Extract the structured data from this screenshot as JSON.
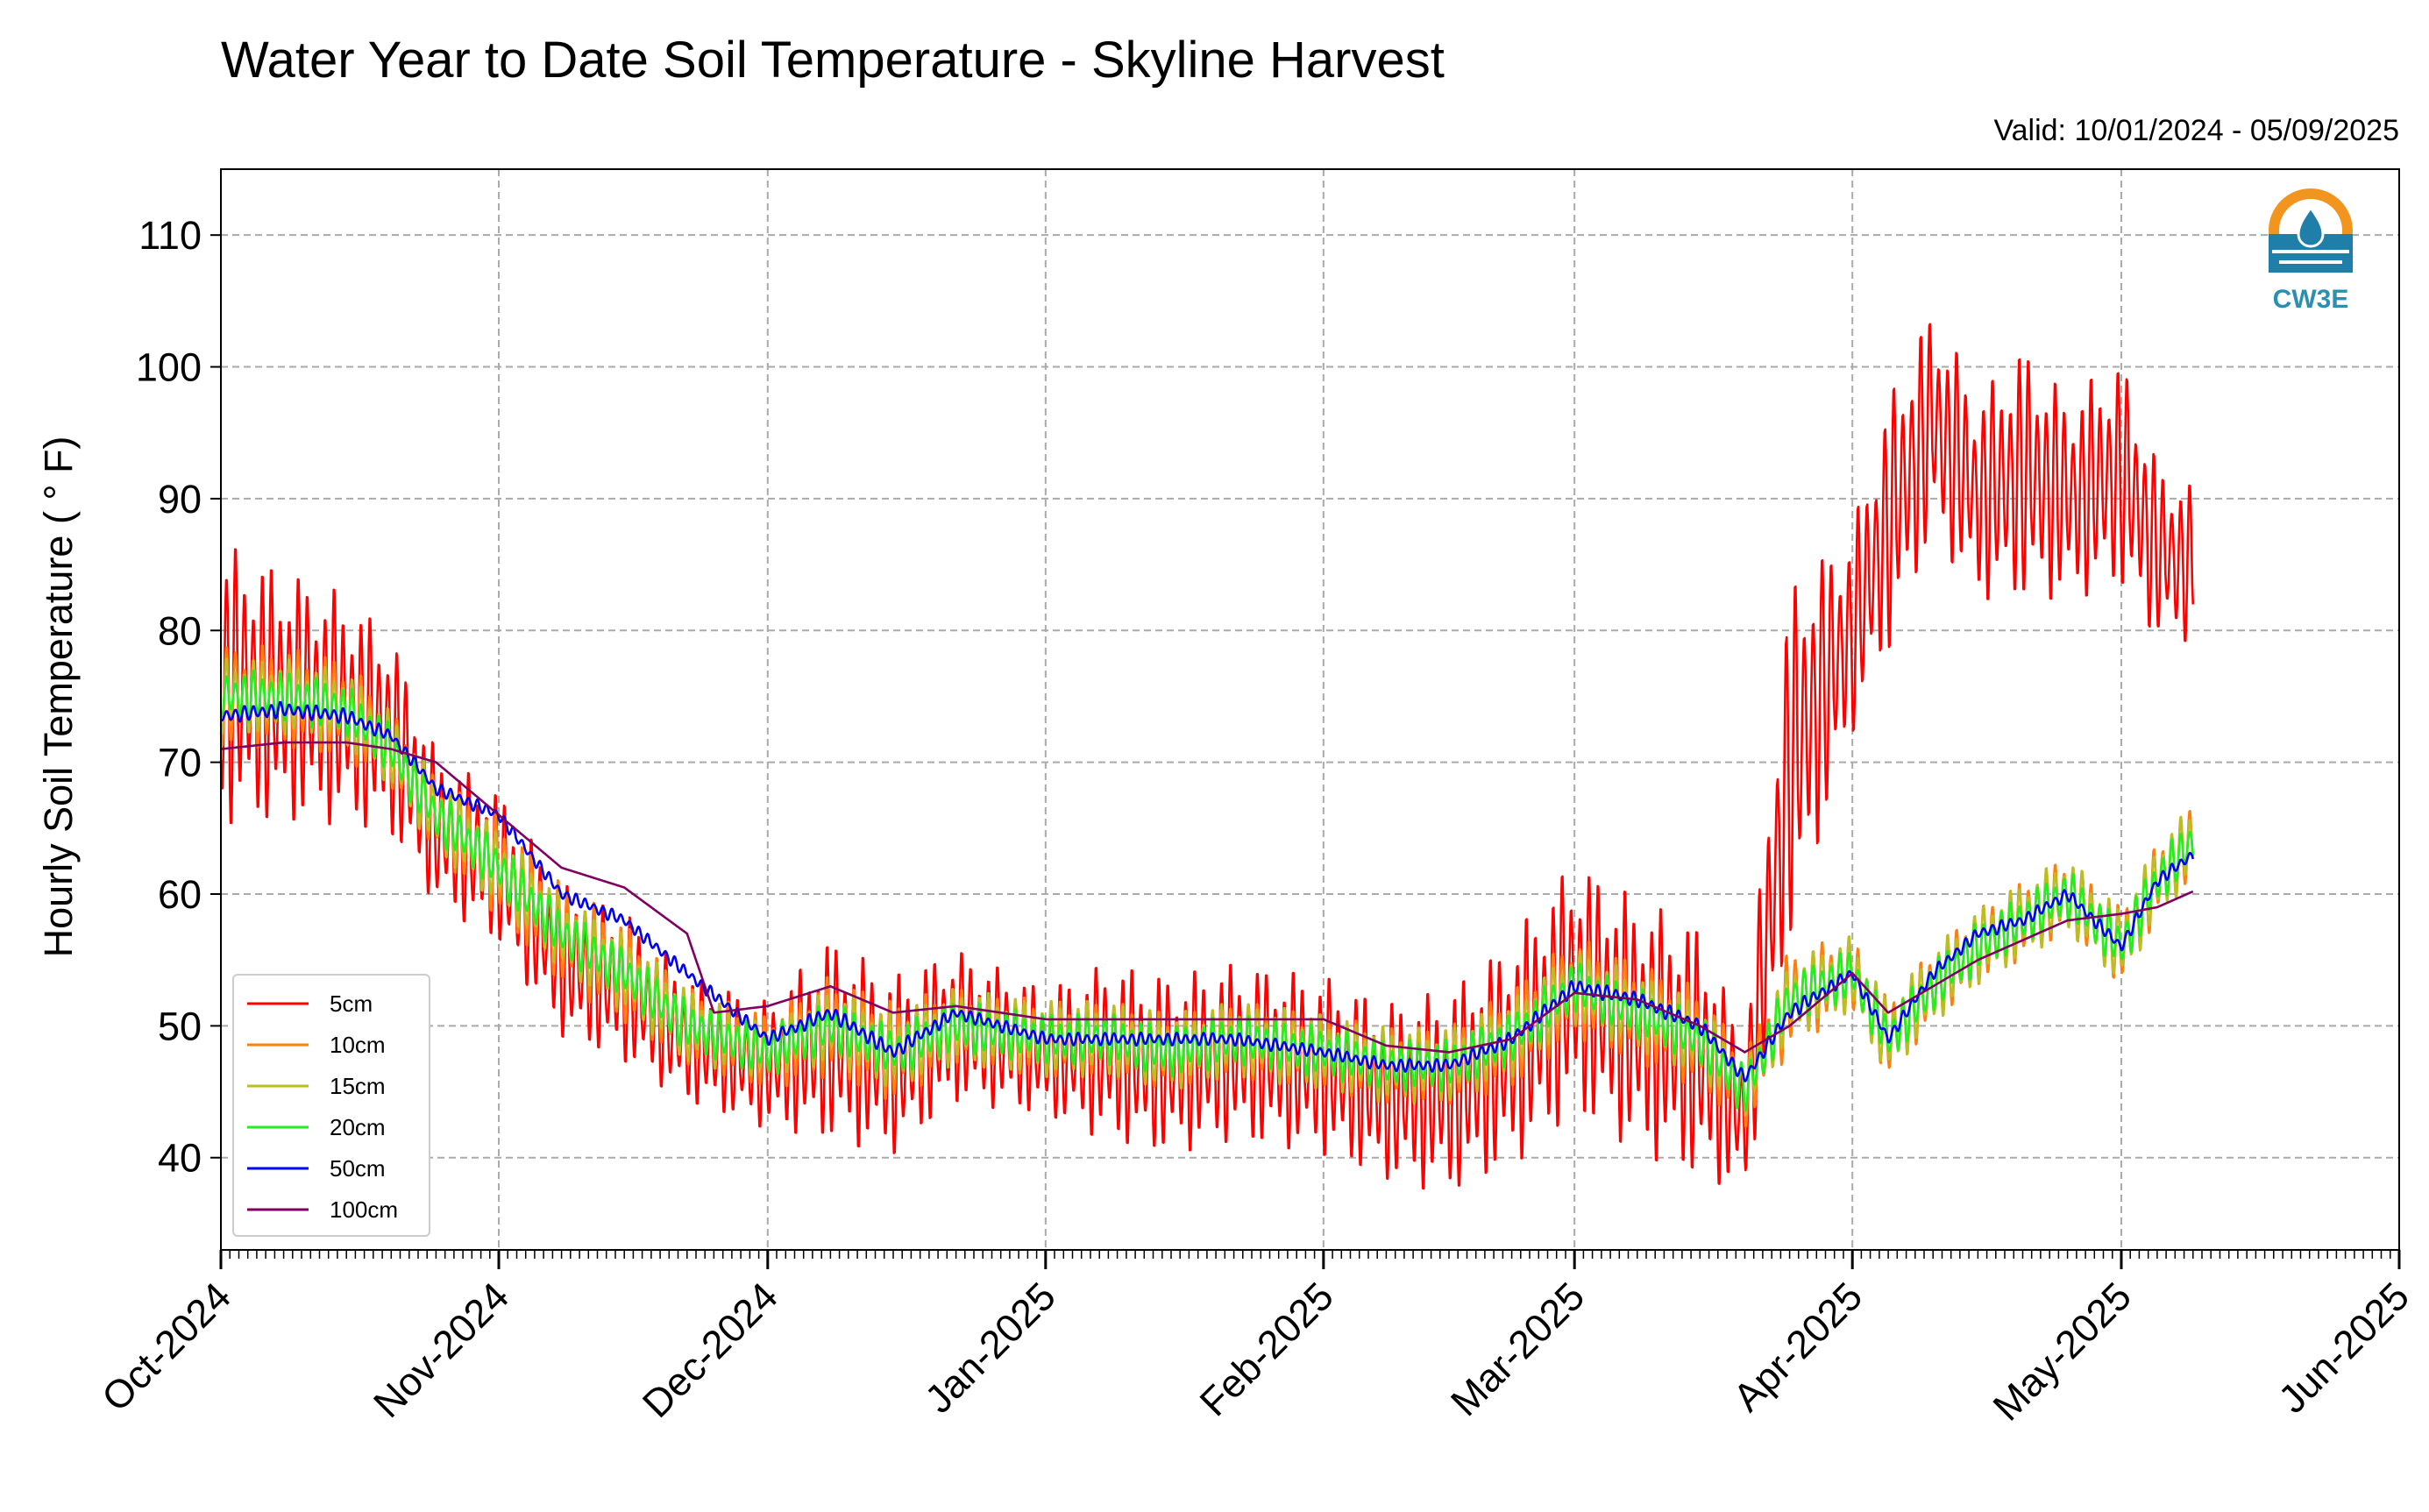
{
  "chart_data": {
    "type": "line",
    "title": "Water Year to Date Soil Temperature - Skyline Harvest",
    "subtitle": "Valid: 10/01/2024 - 05/09/2025",
    "ylabel": "Hourly Soil Temperature ( ° F)",
    "xlabel": "",
    "ylim": [
      33,
      115
    ],
    "yticks": [
      40,
      50,
      60,
      70,
      80,
      90,
      100,
      110
    ],
    "xlim": [
      "2024-10-01",
      "2025-06-01"
    ],
    "xticks": [
      {
        "label": "Oct-2024",
        "date": "2024-10-01"
      },
      {
        "label": "Nov-2024",
        "date": "2024-11-01"
      },
      {
        "label": "Dec-2024",
        "date": "2024-12-01"
      },
      {
        "label": "Jan-2025",
        "date": "2025-01-01"
      },
      {
        "label": "Feb-2025",
        "date": "2025-02-01"
      },
      {
        "label": "Mar-2025",
        "date": "2025-03-01"
      },
      {
        "label": "Apr-2025",
        "date": "2025-04-01"
      },
      {
        "label": "May-2025",
        "date": "2025-05-01"
      },
      {
        "label": "Jun-2025",
        "date": "2025-06-01"
      }
    ],
    "grid": true,
    "legend_position": "lower-left",
    "logo_text": "CW3E",
    "series": [
      {
        "name": "5cm",
        "color": "#ff0000",
        "x": [
          "2024-10-01",
          "2024-10-08",
          "2024-10-15",
          "2024-10-20",
          "2024-10-25",
          "2024-11-01",
          "2024-11-08",
          "2024-11-15",
          "2024-11-22",
          "2024-12-01",
          "2024-12-08",
          "2024-12-15",
          "2024-12-22",
          "2025-01-01",
          "2025-01-08",
          "2025-01-15",
          "2025-01-22",
          "2025-02-01",
          "2025-02-08",
          "2025-02-15",
          "2025-02-22",
          "2025-03-01",
          "2025-03-08",
          "2025-03-15",
          "2025-03-20",
          "2025-03-25",
          "2025-04-01",
          "2025-04-05",
          "2025-04-10",
          "2025-04-15",
          "2025-04-20",
          "2025-04-25",
          "2025-05-01",
          "2025-05-05",
          "2025-05-09"
        ],
        "mean": [
          76,
          75,
          74,
          72,
          65,
          62,
          55,
          53,
          49,
          47,
          49,
          47,
          50,
          48,
          48,
          47,
          48,
          47,
          45,
          45,
          48,
          53,
          50,
          48,
          43,
          70,
          80,
          88,
          96,
          90,
          92,
          90,
          92,
          86,
          85
        ],
        "amp": [
          11,
          10,
          9,
          8,
          6,
          6,
          6,
          6,
          5,
          5,
          8,
          7,
          6,
          5,
          7,
          7,
          7,
          7,
          7,
          8,
          9,
          10,
          10,
          10,
          6,
          14,
          8,
          10,
          9,
          8,
          10,
          8,
          9,
          7,
          6
        ]
      },
      {
        "name": "10cm",
        "color": "#ff7f0e",
        "x": [
          "2024-10-01",
          "2024-10-08",
          "2024-10-15",
          "2024-10-20",
          "2024-10-25",
          "2024-11-01",
          "2024-11-08",
          "2024-11-15",
          "2024-11-22",
          "2024-12-01",
          "2024-12-08",
          "2024-12-15",
          "2024-12-22",
          "2025-01-01",
          "2025-01-08",
          "2025-01-15",
          "2025-01-22",
          "2025-02-01",
          "2025-02-08",
          "2025-02-15",
          "2025-02-22",
          "2025-03-01",
          "2025-03-08",
          "2025-03-15",
          "2025-03-20",
          "2025-03-25",
          "2025-04-01",
          "2025-04-05",
          "2025-04-10",
          "2025-04-15",
          "2025-04-20",
          "2025-04-25",
          "2025-05-01",
          "2025-05-05",
          "2025-05-09"
        ],
        "mean": [
          75,
          75,
          74,
          71,
          66,
          62,
          57,
          54,
          50,
          48,
          50,
          48,
          50,
          49,
          49,
          48,
          49,
          48,
          47,
          47,
          49,
          53,
          51,
          49,
          45,
          52,
          54,
          49,
          53,
          56,
          58,
          60,
          56,
          61,
          64
        ],
        "amp": [
          4,
          4,
          4,
          3,
          3,
          4,
          4,
          4,
          3,
          3,
          4,
          4,
          3,
          3,
          3,
          3,
          3,
          3,
          3,
          3,
          4,
          4,
          4,
          4,
          3,
          4,
          3,
          3,
          3,
          3,
          3,
          3,
          3,
          3,
          3
        ]
      },
      {
        "name": "15cm",
        "color": "#bcbd22",
        "x": [
          "2024-10-01",
          "2024-10-08",
          "2024-10-15",
          "2024-10-20",
          "2024-10-25",
          "2024-11-01",
          "2024-11-08",
          "2024-11-15",
          "2024-11-22",
          "2024-12-01",
          "2024-12-08",
          "2024-12-15",
          "2024-12-22",
          "2025-01-01",
          "2025-01-08",
          "2025-01-15",
          "2025-01-22",
          "2025-02-01",
          "2025-02-08",
          "2025-02-15",
          "2025-02-22",
          "2025-03-01",
          "2025-03-08",
          "2025-03-15",
          "2025-03-20",
          "2025-03-25",
          "2025-04-01",
          "2025-04-05",
          "2025-04-10",
          "2025-04-15",
          "2025-04-20",
          "2025-04-25",
          "2025-05-01",
          "2025-05-05",
          "2025-05-09"
        ],
        "mean": [
          75,
          75,
          74,
          71,
          66,
          62,
          57,
          54,
          50,
          48,
          50,
          48,
          50,
          49,
          49,
          48,
          49,
          48,
          47,
          47,
          49,
          53,
          51,
          49,
          45,
          52,
          54,
          49,
          53,
          56,
          58,
          60,
          56,
          61,
          64
        ],
        "amp": [
          3,
          3,
          3,
          3,
          3,
          3,
          3,
          3,
          3,
          2,
          3,
          3,
          3,
          3,
          3,
          3,
          3,
          3,
          3,
          3,
          3,
          3,
          3,
          3,
          2,
          3,
          3,
          3,
          3,
          3,
          3,
          3,
          3,
          3,
          3
        ]
      },
      {
        "name": "20cm",
        "color": "#22ee22",
        "x": [
          "2024-10-01",
          "2024-10-08",
          "2024-10-15",
          "2024-10-20",
          "2024-10-25",
          "2024-11-01",
          "2024-11-08",
          "2024-11-15",
          "2024-11-22",
          "2024-12-01",
          "2024-12-08",
          "2024-12-15",
          "2024-12-22",
          "2025-01-01",
          "2025-01-08",
          "2025-01-15",
          "2025-01-22",
          "2025-02-01",
          "2025-02-08",
          "2025-02-15",
          "2025-02-22",
          "2025-03-01",
          "2025-03-08",
          "2025-03-15",
          "2025-03-20",
          "2025-03-25",
          "2025-04-01",
          "2025-04-05",
          "2025-04-10",
          "2025-04-15",
          "2025-04-20",
          "2025-04-25",
          "2025-05-01",
          "2025-05-05",
          "2025-05-09"
        ],
        "mean": [
          75,
          75,
          74,
          71,
          66,
          62,
          57,
          54,
          50,
          48,
          50,
          48,
          50,
          49,
          49,
          48,
          49,
          48,
          47,
          47,
          49,
          53,
          51,
          49,
          45,
          52,
          54,
          49,
          53,
          56,
          58,
          60,
          56,
          61,
          64
        ],
        "amp": [
          2,
          2,
          2,
          2,
          2,
          2,
          2,
          2,
          2,
          2,
          2,
          2,
          2,
          2,
          2,
          2,
          2,
          2,
          2,
          2,
          2,
          2,
          2,
          2,
          2,
          2,
          2,
          2,
          2,
          2,
          2,
          2,
          2,
          2,
          2
        ]
      },
      {
        "name": "50cm",
        "color": "#0000ee",
        "x": [
          "2024-10-01",
          "2024-10-08",
          "2024-10-15",
          "2024-10-20",
          "2024-10-25",
          "2024-11-01",
          "2024-11-08",
          "2024-11-15",
          "2024-11-22",
          "2024-12-01",
          "2024-12-08",
          "2024-12-15",
          "2024-12-22",
          "2025-01-01",
          "2025-01-08",
          "2025-01-15",
          "2025-01-22",
          "2025-02-01",
          "2025-02-08",
          "2025-02-15",
          "2025-02-22",
          "2025-03-01",
          "2025-03-08",
          "2025-03-15",
          "2025-03-20",
          "2025-03-25",
          "2025-04-01",
          "2025-04-05",
          "2025-04-10",
          "2025-04-15",
          "2025-04-20",
          "2025-04-25",
          "2025-05-01",
          "2025-05-05",
          "2025-05-09"
        ],
        "mean": [
          73.5,
          74,
          73.5,
          72,
          68,
          66,
          60,
          58,
          54,
          49,
          51,
          48,
          51,
          49,
          49,
          49,
          49,
          48,
          47,
          47,
          49,
          53,
          52,
          50,
          46,
          51,
          54,
          49,
          54,
          57,
          58,
          60,
          56,
          61,
          63
        ],
        "amp": [
          0.6,
          0.6,
          0.6,
          0.5,
          0.5,
          0.5,
          0.5,
          0.5,
          0.5,
          0.5,
          0.6,
          0.6,
          0.5,
          0.5,
          0.5,
          0.5,
          0.5,
          0.5,
          0.5,
          0.5,
          0.6,
          0.6,
          0.6,
          0.6,
          0.5,
          0.6,
          0.5,
          0.5,
          0.5,
          0.5,
          0.5,
          0.5,
          0.5,
          0.5,
          0.5
        ]
      },
      {
        "name": "100cm",
        "color": "#800060",
        "x": [
          "2024-10-01",
          "2024-10-08",
          "2024-10-15",
          "2024-10-20",
          "2024-10-25",
          "2024-11-01",
          "2024-11-08",
          "2024-11-15",
          "2024-11-22",
          "2024-11-25",
          "2024-12-01",
          "2024-12-08",
          "2024-12-15",
          "2024-12-22",
          "2025-01-01",
          "2025-01-08",
          "2025-01-15",
          "2025-01-22",
          "2025-02-01",
          "2025-02-08",
          "2025-02-15",
          "2025-02-22",
          "2025-03-01",
          "2025-03-08",
          "2025-03-15",
          "2025-03-20",
          "2025-03-25",
          "2025-04-01",
          "2025-04-05",
          "2025-04-10",
          "2025-04-15",
          "2025-04-20",
          "2025-04-25",
          "2025-05-01",
          "2025-05-05",
          "2025-05-09"
        ],
        "mean": [
          71,
          71.5,
          71.5,
          71,
          70,
          66,
          62,
          60.5,
          57,
          51,
          51.5,
          53,
          51,
          51.5,
          50.5,
          50.5,
          50.5,
          50.5,
          50.5,
          48.5,
          48,
          49,
          52.5,
          52,
          50,
          48,
          50,
          54,
          51,
          53,
          55,
          56.5,
          58,
          58.5,
          59,
          60.2
        ],
        "amp": [
          0,
          0,
          0,
          0,
          0,
          0,
          0,
          0,
          0,
          0,
          0,
          0,
          0,
          0,
          0,
          0,
          0,
          0,
          0,
          0,
          0,
          0,
          0,
          0,
          0,
          0,
          0,
          0,
          0,
          0,
          0,
          0,
          0,
          0,
          0,
          0
        ]
      }
    ]
  }
}
